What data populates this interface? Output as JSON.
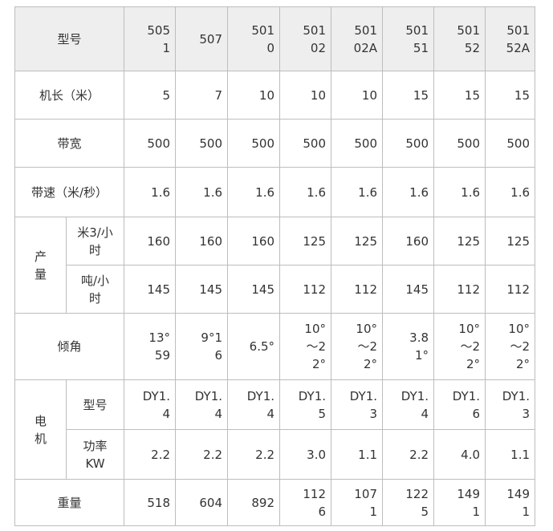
{
  "table": {
    "header": [
      "型号",
      "5051",
      "507",
      "5010",
      "50102",
      "50102A",
      "50151",
      "50152",
      "50152A"
    ],
    "rows": [
      {
        "label": "机长（米）",
        "values": [
          "5",
          "7",
          "10",
          "10",
          "10",
          "15",
          "15",
          "15"
        ]
      },
      {
        "label": "带宽",
        "values": [
          "500",
          "500",
          "500",
          "500",
          "500",
          "500",
          "500",
          "500"
        ]
      },
      {
        "label": "带速（米/秒）",
        "values": [
          "1.6",
          "1.6",
          "1.6",
          "1.6",
          "1.6",
          "1.6",
          "1.6",
          "1.6"
        ]
      },
      {
        "label": "产量",
        "subrows": [
          {
            "label": "米3/小时",
            "values": [
              "160",
              "160",
              "160",
              "125",
              "125",
              "160",
              "125",
              "125"
            ]
          },
          {
            "label": "吨/小时",
            "values": [
              "145",
              "145",
              "145",
              "112",
              "112",
              "145",
              "112",
              "112"
            ]
          }
        ]
      },
      {
        "label": "倾角",
        "values": [
          "13°59",
          "9°16",
          "6.5°",
          "10°～22°",
          "10°～22°",
          "3.81°",
          "10°～22°",
          "10°～22°"
        ]
      },
      {
        "label": "电机",
        "subrows": [
          {
            "label": "型号",
            "values": [
              "DY1.4",
              "DY1.4",
              "DY1.4",
              "DY1.5",
              "DY1.3",
              "DY1.4",
              "DY1.6",
              "DY1.3"
            ]
          },
          {
            "label": "功率KW",
            "values": [
              "2.2",
              "2.2",
              "2.2",
              "3.0",
              "1.1",
              "2.2",
              "4.0",
              "1.1"
            ]
          }
        ]
      },
      {
        "label": "重量",
        "values": [
          "518",
          "604",
          "892",
          "1126",
          "1071",
          "1225",
          "1491",
          "1491"
        ]
      }
    ]
  }
}
